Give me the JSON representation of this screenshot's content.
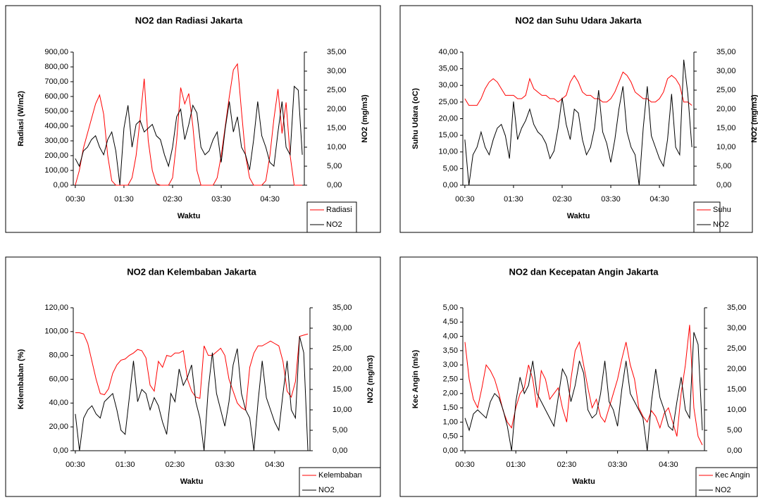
{
  "chart_data": [
    {
      "type": "line",
      "title": "NO2 dan Radiasi Jakarta",
      "x_label": "Waktu",
      "y_label": "Radiasi (W/m2)",
      "y2_label": "NO2 (mg/m3)",
      "legend": "lower right",
      "categories": [
        "00:30",
        null,
        null,
        null,
        null,
        null,
        null,
        null,
        null,
        null,
        null,
        null,
        "01:30",
        null,
        null,
        null,
        null,
        null,
        null,
        null,
        null,
        null,
        null,
        null,
        "02:30",
        null,
        null,
        null,
        null,
        null,
        null,
        null,
        null,
        null,
        null,
        null,
        "03:30",
        null,
        null,
        null,
        null,
        null,
        null,
        null,
        null,
        null,
        null,
        null,
        "04:30",
        null,
        null,
        null,
        null,
        null,
        null,
        null,
        null
      ],
      "ylim": [
        0,
        900
      ],
      "yticks": [
        {
          "value": 0,
          "label": "0,00"
        },
        {
          "value": 100,
          "label": "100,00"
        },
        {
          "value": 200,
          "label": "200,00"
        },
        {
          "value": 300,
          "label": "300,00"
        },
        {
          "value": 400,
          "label": "400,00"
        },
        {
          "value": 500,
          "label": "500,00"
        },
        {
          "value": 600,
          "label": "600,00"
        },
        {
          "value": 700,
          "label": "700,00"
        },
        {
          "value": 800,
          "label": "800,00"
        },
        {
          "value": 900,
          "label": "900,00"
        }
      ],
      "y2lim": [
        0,
        35
      ],
      "y2ticks": [
        {
          "value": 0,
          "label": "0,00"
        },
        {
          "value": 5,
          "label": "5,00"
        },
        {
          "value": 10,
          "label": "10,00"
        },
        {
          "value": 15,
          "label": "15,00"
        },
        {
          "value": 20,
          "label": "20,00"
        },
        {
          "value": 25,
          "label": "25,00"
        },
        {
          "value": 30,
          "label": "30,00"
        },
        {
          "value": 35,
          "label": "35,00"
        }
      ],
      "series": [
        {
          "name": "Radiasi",
          "color": "#ff0000",
          "values": [
            0,
            100,
            250,
            350,
            450,
            550,
            610,
            480,
            200,
            30,
            0,
            0,
            0,
            0,
            50,
            200,
            450,
            720,
            300,
            100,
            10,
            0,
            0,
            0,
            50,
            300,
            660,
            550,
            620,
            400,
            100,
            0,
            0,
            0,
            0,
            50,
            200,
            400,
            600,
            780,
            820,
            500,
            200,
            50,
            0,
            0,
            0,
            30,
            200,
            450,
            650,
            350,
            560,
            200,
            0,
            0,
            0
          ]
        },
        {
          "name": "NO2",
          "color": "#000000",
          "axis": "y2",
          "values": [
            7,
            5,
            9,
            10,
            12,
            13,
            10,
            8,
            12,
            14,
            9,
            0,
            15,
            21,
            10,
            16,
            17,
            14,
            15,
            16,
            13,
            12,
            8,
            5,
            10,
            18,
            20,
            12,
            16,
            21,
            19,
            10,
            8,
            9,
            12,
            14,
            6,
            15,
            22,
            14,
            18,
            10,
            8,
            4,
            12,
            22,
            13,
            10,
            6,
            5,
            14,
            22,
            10,
            8,
            26,
            25,
            8
          ]
        }
      ]
    },
    {
      "type": "line",
      "title": "NO2 dan Suhu Udara Jakarta",
      "x_label": "Waktu",
      "y_label": "Suhu Udara (oC)",
      "y2_label": "NO2 (mg/m3)",
      "legend": "lower right",
      "categories": [
        "00:30",
        null,
        null,
        null,
        null,
        null,
        null,
        null,
        null,
        null,
        null,
        null,
        "01:30",
        null,
        null,
        null,
        null,
        null,
        null,
        null,
        null,
        null,
        null,
        null,
        "02:30",
        null,
        null,
        null,
        null,
        null,
        null,
        null,
        null,
        null,
        null,
        null,
        "03:30",
        null,
        null,
        null,
        null,
        null,
        null,
        null,
        null,
        null,
        null,
        null,
        "04:30",
        null,
        null,
        null,
        null,
        null,
        null,
        null,
        null
      ],
      "ylim": [
        0,
        40
      ],
      "yticks": [
        {
          "value": 0,
          "label": "0,00"
        },
        {
          "value": 5,
          "label": "5,00"
        },
        {
          "value": 10,
          "label": "10,00"
        },
        {
          "value": 15,
          "label": "15,00"
        },
        {
          "value": 20,
          "label": "20,00"
        },
        {
          "value": 25,
          "label": "25,00"
        },
        {
          "value": 30,
          "label": "30,00"
        },
        {
          "value": 35,
          "label": "35,00"
        },
        {
          "value": 40,
          "label": "40,00"
        }
      ],
      "y2lim": [
        0,
        35
      ],
      "y2ticks": [
        {
          "value": 0,
          "label": "0,00"
        },
        {
          "value": 5,
          "label": "5,00"
        },
        {
          "value": 10,
          "label": "10,00"
        },
        {
          "value": 15,
          "label": "15,00"
        },
        {
          "value": 20,
          "label": "20,00"
        },
        {
          "value": 25,
          "label": "25,00"
        },
        {
          "value": 30,
          "label": "30,00"
        },
        {
          "value": 35,
          "label": "35,00"
        }
      ],
      "series": [
        {
          "name": "Suhu",
          "color": "#ff0000",
          "values": [
            26,
            24,
            24,
            24,
            26,
            29,
            31,
            32,
            31,
            29,
            27,
            27,
            27,
            26,
            26,
            27,
            32,
            29,
            28,
            27,
            27,
            26,
            26,
            25,
            26,
            27,
            31,
            33,
            31,
            28,
            27,
            27,
            26,
            26,
            25,
            25,
            26,
            28,
            31,
            34,
            33,
            31,
            28,
            27,
            26,
            26,
            25,
            25,
            26,
            28,
            32,
            33,
            32,
            30,
            25,
            25,
            24
          ]
        },
        {
          "name": "NO2",
          "color": "#000000",
          "axis": "y2",
          "values": [
            12,
            0,
            8,
            10,
            14,
            10,
            8,
            12,
            15,
            16,
            13,
            7,
            22,
            12,
            15,
            17,
            20,
            16,
            14,
            13,
            11,
            7,
            9,
            15,
            23,
            16,
            12,
            20,
            19,
            12,
            8,
            10,
            15,
            25,
            14,
            11,
            6,
            12,
            20,
            26,
            14,
            10,
            8,
            0,
            15,
            26,
            13,
            10,
            7,
            5,
            12,
            24,
            10,
            8,
            33,
            24,
            10
          ]
        }
      ]
    },
    {
      "type": "line",
      "title": "NO2 dan Kelembaban Jakarta",
      "x_label": "Waktu",
      "y_label": "Kelembaban (%)",
      "y2_label": "NO2 (mg/m3)",
      "legend": "lower right",
      "categories": [
        "00:30",
        null,
        null,
        null,
        null,
        null,
        null,
        null,
        null,
        null,
        null,
        null,
        "01:30",
        null,
        null,
        null,
        null,
        null,
        null,
        null,
        null,
        null,
        null,
        null,
        "02:30",
        null,
        null,
        null,
        null,
        null,
        null,
        null,
        null,
        null,
        null,
        null,
        "03:30",
        null,
        null,
        null,
        null,
        null,
        null,
        null,
        null,
        null,
        null,
        null,
        "04:30",
        null,
        null,
        null,
        null,
        null,
        null,
        null,
        null
      ],
      "ylim": [
        0,
        120
      ],
      "yticks": [
        {
          "value": 0,
          "label": "0,00"
        },
        {
          "value": 20,
          "label": "20,00"
        },
        {
          "value": 40,
          "label": "40,00"
        },
        {
          "value": 60,
          "label": "60,00"
        },
        {
          "value": 80,
          "label": "80,00"
        },
        {
          "value": 100,
          "label": "100,00"
        },
        {
          "value": 120,
          "label": "120,00"
        }
      ],
      "y2lim": [
        0,
        35
      ],
      "y2ticks": [
        {
          "value": 0,
          "label": "0,00"
        },
        {
          "value": 5,
          "label": "5,00"
        },
        {
          "value": 10,
          "label": "10,00"
        },
        {
          "value": 15,
          "label": "15,00"
        },
        {
          "value": 20,
          "label": "20,00"
        },
        {
          "value": 25,
          "label": "25,00"
        },
        {
          "value": 30,
          "label": "30,00"
        },
        {
          "value": 35,
          "label": "35,00"
        }
      ],
      "series": [
        {
          "name": "Kelembaban",
          "color": "#ff0000",
          "values": [
            99,
            99,
            98,
            90,
            75,
            60,
            48,
            47,
            52,
            65,
            72,
            76,
            77,
            80,
            82,
            85,
            84,
            78,
            55,
            50,
            75,
            70,
            80,
            79,
            82,
            82,
            84,
            60,
            50,
            45,
            44,
            88,
            80,
            80,
            83,
            86,
            80,
            60,
            50,
            40,
            36,
            34,
            70,
            82,
            88,
            88,
            90,
            92,
            90,
            88,
            75,
            50,
            45,
            58,
            96,
            97,
            98
          ]
        },
        {
          "name": "NO2",
          "color": "#000000",
          "axis": "y2",
          "values": [
            9,
            0,
            8,
            10,
            11,
            9,
            8,
            12,
            13,
            14,
            10,
            5,
            4,
            13,
            22,
            12,
            15,
            14,
            10,
            13,
            11,
            7,
            4,
            14,
            12,
            20,
            16,
            18,
            21,
            12,
            8,
            0,
            15,
            24,
            14,
            10,
            6,
            12,
            21,
            25,
            14,
            10,
            8,
            0,
            12,
            22,
            13,
            10,
            7,
            5,
            14,
            22,
            10,
            8,
            28,
            24,
            0
          ]
        }
      ]
    },
    {
      "type": "line",
      "title": "NO2 dan Kecepatan Angin Jakarta",
      "x_label": "Waktu",
      "y_label": "Kec Angin (m/s)",
      "y2_label": "NO2 (mg/m3)",
      "legend": "lower right",
      "categories": [
        "00:30",
        null,
        null,
        null,
        null,
        null,
        null,
        null,
        null,
        null,
        null,
        null,
        "01:30",
        null,
        null,
        null,
        null,
        null,
        null,
        null,
        null,
        null,
        null,
        null,
        "02:30",
        null,
        null,
        null,
        null,
        null,
        null,
        null,
        null,
        null,
        null,
        null,
        "03:30",
        null,
        null,
        null,
        null,
        null,
        null,
        null,
        null,
        null,
        null,
        null,
        "04:30",
        null,
        null,
        null,
        null,
        null,
        null,
        null,
        null
      ],
      "ylim": [
        0,
        5
      ],
      "yticks": [
        {
          "value": 0,
          "label": "0,00"
        },
        {
          "value": 0.5,
          "label": "0,50"
        },
        {
          "value": 1,
          "label": "1,00"
        },
        {
          "value": 1.5,
          "label": "1,50"
        },
        {
          "value": 2,
          "label": "2,00"
        },
        {
          "value": 2.5,
          "label": "2,50"
        },
        {
          "value": 3,
          "label": "3,00"
        },
        {
          "value": 3.5,
          "label": "3,50"
        },
        {
          "value": 4,
          "label": "4,00"
        },
        {
          "value": 4.5,
          "label": "4,50"
        },
        {
          "value": 5,
          "label": "5,00"
        }
      ],
      "y2lim": [
        0,
        35
      ],
      "y2ticks": [
        {
          "value": 0,
          "label": "0,00"
        },
        {
          "value": 5,
          "label": "5,00"
        },
        {
          "value": 10,
          "label": "10,00"
        },
        {
          "value": 15,
          "label": "15,00"
        },
        {
          "value": 20,
          "label": "20,00"
        },
        {
          "value": 25,
          "label": "25,00"
        },
        {
          "value": 30,
          "label": "30,00"
        },
        {
          "value": 35,
          "label": "35,00"
        }
      ],
      "series": [
        {
          "name": "Kec Angin",
          "color": "#ff0000",
          "values": [
            3.8,
            2.5,
            1.8,
            1.5,
            2.2,
            3.0,
            2.8,
            2.5,
            2.0,
            1.4,
            1.0,
            0.8,
            1.5,
            2.0,
            2.2,
            3.0,
            2.5,
            1.5,
            2.8,
            2.5,
            1.8,
            2.0,
            2.2,
            1.5,
            1.0,
            2.5,
            3.5,
            3.8,
            3.0,
            2.2,
            1.5,
            1.8,
            1.2,
            1.0,
            1.5,
            2.0,
            2.5,
            3.2,
            3.8,
            3.0,
            2.5,
            1.5,
            1.2,
            1.0,
            1.4,
            1.2,
            0.8,
            1.3,
            1.5,
            1.0,
            0.5,
            2.0,
            3.0,
            4.4,
            1.5,
            0.5,
            0.2
          ]
        },
        {
          "name": "NO2",
          "color": "#000000",
          "axis": "y2",
          "values": [
            8,
            5,
            9,
            10,
            9,
            8,
            12,
            14,
            13,
            10,
            6,
            0,
            12,
            18,
            14,
            16,
            22,
            14,
            12,
            10,
            8,
            6,
            13,
            20,
            18,
            12,
            16,
            22,
            19,
            10,
            8,
            9,
            14,
            22,
            12,
            10,
            6,
            15,
            22,
            14,
            12,
            10,
            8,
            0,
            12,
            20,
            13,
            10,
            6,
            5,
            12,
            18,
            10,
            8,
            29,
            26,
            5
          ]
        }
      ]
    }
  ]
}
